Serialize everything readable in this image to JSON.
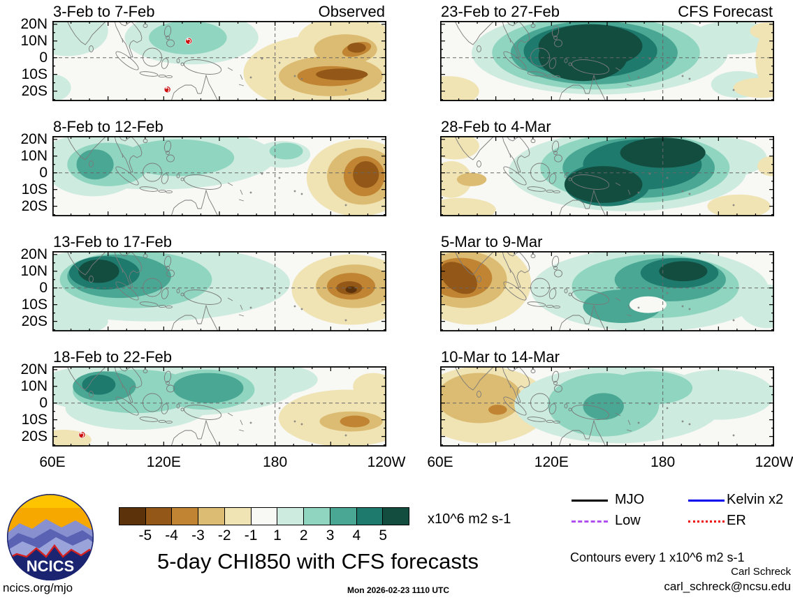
{
  "header": {
    "observed_label": "Observed",
    "forecast_label": "CFS Forecast"
  },
  "axes": {
    "x_ticks": [
      "60E",
      "120E",
      "180",
      "120W"
    ],
    "y_ticks": [
      "20N",
      "10N",
      "0",
      "10S",
      "20S"
    ]
  },
  "colorbar": {
    "values": [
      "-5",
      "-4",
      "-3",
      "-2",
      "-1",
      "1",
      "2",
      "3",
      "4",
      "5"
    ],
    "colors": [
      "#5b3209",
      "#935817",
      "#c08433",
      "#dcbc72",
      "#f0e3b4",
      "#f8f8f5",
      "#cdebdf",
      "#8fd5c0",
      "#4aa794",
      "#1e7a6d",
      "#124d40"
    ],
    "units": "x10^6 m2 s-1"
  },
  "legend": {
    "items": [
      {
        "label": "MJO",
        "color": "#000000",
        "style": "solid"
      },
      {
        "label": "Kelvin x2",
        "color": "#0000ee",
        "style": "solid"
      },
      {
        "label": "Low",
        "color": "#b050f0",
        "style": "dashed"
      },
      {
        "label": "ER",
        "color": "#ee0000",
        "style": "dotted"
      }
    ]
  },
  "footer": {
    "contours_note": "Contours every 1 x10^6 m2 s-1",
    "credit_name": "Carl Schreck",
    "credit_email": "carl_schreck@ncsu.edu",
    "title": "5-day CHI850 with CFS forecasts",
    "site": "ncics.org/mjo",
    "timestamp": "Mon 2026-02-23 1110 UTC",
    "logo_text": "NCICS"
  },
  "chart_data": {
    "type": "heatmap",
    "subtype": "filled-contour-longitude-latitude-maps",
    "variable": "CHI850 (850 hPa velocity potential anomaly)",
    "units": "x10^6 m2 s-1",
    "contour_interval": 1,
    "lon_range": [
      60,
      240
    ],
    "lat_range": [
      -26,
      22
    ],
    "x_tick_lons": [
      60,
      120,
      180,
      240
    ],
    "y_tick_lats": [
      20,
      10,
      0,
      -10,
      -20
    ],
    "gridlines": {
      "equator": 0,
      "dateline": 180
    },
    "panels": [
      {
        "id": "obs-1",
        "title": "3-Feb to 7-Feb",
        "corner_label": "Observed",
        "source": "Observed",
        "features": [
          {
            "lon": 68,
            "lat": 16,
            "rlon": 22,
            "rlat": 15,
            "value": 1
          },
          {
            "lon": 60,
            "lat": -18,
            "rlon": 10,
            "rlat": 8,
            "value": 1
          },
          {
            "lon": 135,
            "lat": 12,
            "rlon": 36,
            "rlat": 16,
            "value": 1
          },
          {
            "lon": 133,
            "lat": 12,
            "rlon": 21,
            "rlat": 10,
            "value": 2
          },
          {
            "lon": 208,
            "lat": -9,
            "rlon": 45,
            "rlat": 23,
            "value": -1
          },
          {
            "lon": 218,
            "lat": 10,
            "rlon": 26,
            "rlat": 15,
            "value": -1
          },
          {
            "lon": 218,
            "lat": 5,
            "rlon": 17,
            "rlat": 9,
            "value": -2
          },
          {
            "lon": 210,
            "lat": -11,
            "rlon": 28,
            "rlat": 12,
            "value": -2
          },
          {
            "lon": 224,
            "lat": 5,
            "rlon": 8,
            "rlat": 4,
            "rot": -15,
            "value": -3
          },
          {
            "lon": 210,
            "lat": -11,
            "rlon": 18,
            "rlat": 6,
            "value": -3
          },
          {
            "lon": 224,
            "lat": 6,
            "rlon": 5,
            "rlat": 3,
            "value": -4
          },
          {
            "lon": 216,
            "lat": -10,
            "rlon": 14,
            "rlat": 3.5,
            "value": -4
          }
        ],
        "storms": [
          {
            "lon": 133.5,
            "lat": 10
          },
          {
            "lon": 122,
            "lat": -19
          }
        ]
      },
      {
        "id": "obs-2",
        "title": "8-Feb to 12-Feb",
        "source": "Observed",
        "features": [
          {
            "lon": 116,
            "lat": 9,
            "rlon": 64,
            "rlat": 19,
            "value": 1
          },
          {
            "lon": 82,
            "lat": 3,
            "rlon": 26,
            "rlat": 17,
            "value": 1
          },
          {
            "lon": 184,
            "lat": 11,
            "rlon": 15,
            "rlat": 8,
            "value": 1
          },
          {
            "lon": 90,
            "lat": 5,
            "rlon": 22,
            "rlat": 13,
            "value": 2
          },
          {
            "lon": 128,
            "lat": 9,
            "rlon": 30,
            "rlat": 11,
            "value": 2
          },
          {
            "lon": 186,
            "lat": 13,
            "rlon": 9,
            "rlat": 5,
            "value": 2
          },
          {
            "lon": 83,
            "lat": 5,
            "rlon": 10,
            "rlat": 9,
            "value": 3
          },
          {
            "lon": 225,
            "lat": -3,
            "rlon": 28,
            "rlat": 23,
            "value": -1
          },
          {
            "lon": 227,
            "lat": -2,
            "rlon": 19,
            "rlat": 17,
            "value": -2
          },
          {
            "lon": 228,
            "lat": -2,
            "rlon": 11,
            "rlat": 12,
            "value": -3
          },
          {
            "lon": 229,
            "lat": -1,
            "rlon": 7,
            "rlat": 8,
            "value": -4
          }
        ],
        "storms": []
      },
      {
        "id": "obs-3",
        "title": "13-Feb to 17-Feb",
        "source": "Observed",
        "features": [
          {
            "lon": 113,
            "lat": 3,
            "rlon": 75,
            "rlat": 23,
            "value": 1
          },
          {
            "lon": 71,
            "lat": -20,
            "rlon": 19,
            "rlat": 8,
            "value": 1
          },
          {
            "lon": 105,
            "lat": 5,
            "rlon": 41,
            "rlat": 17,
            "value": 2
          },
          {
            "lon": 96,
            "lat": 7,
            "rlon": 28,
            "rlat": 13,
            "value": 3
          },
          {
            "lon": 88,
            "lat": 9,
            "rlon": 19,
            "rlat": 10,
            "value": 4
          },
          {
            "lon": 85,
            "lat": 10,
            "rlon": 11,
            "rlat": 7,
            "value": 5
          },
          {
            "lon": 221,
            "lat": -1,
            "rlon": 32,
            "rlat": 21,
            "value": -1
          },
          {
            "lon": 223,
            "lat": 1,
            "rlon": 21,
            "rlat": 13,
            "value": -2
          },
          {
            "lon": 221,
            "lat": 1,
            "rlon": 13,
            "rlat": 8,
            "value": -3
          },
          {
            "lon": 220,
            "lat": 0,
            "rlon": 7,
            "rlat": 4,
            "value": -4
          },
          {
            "lon": 221,
            "lat": -1,
            "rlon": 3,
            "rlat": 2,
            "value": -5
          }
        ],
        "storms": []
      },
      {
        "id": "obs-4",
        "title": "18-Feb to 22-Feb",
        "source": "Observed",
        "features": [
          {
            "lon": 120,
            "lat": 9,
            "rlon": 71,
            "rlat": 17,
            "value": 1
          },
          {
            "lon": 105,
            "lat": -3,
            "rlon": 38,
            "rlat": 13,
            "value": 1
          },
          {
            "lon": 173,
            "lat": 14,
            "rlon": 30,
            "rlat": 10,
            "value": 1
          },
          {
            "lon": 105,
            "lat": 7,
            "rlon": 34,
            "rlat": 13,
            "value": 2
          },
          {
            "lon": 143,
            "lat": 8,
            "rlon": 26,
            "rlat": 12,
            "value": 2
          },
          {
            "lon": 88,
            "lat": 10,
            "rlon": 17,
            "rlat": 9,
            "value": 3
          },
          {
            "lon": 144,
            "lat": 9,
            "rlon": 19,
            "rlat": 9,
            "value": 3
          },
          {
            "lon": 85,
            "lat": 11,
            "rlon": 9,
            "rlat": 6,
            "value": 4
          },
          {
            "lon": 66,
            "lat": -22,
            "rlon": 15,
            "rlat": 6,
            "value": -1
          },
          {
            "lon": 218,
            "lat": -9,
            "rlon": 36,
            "rlat": 17,
            "value": -1
          },
          {
            "lon": 233,
            "lat": 10,
            "rlon": 11,
            "rlat": 8,
            "value": -1
          },
          {
            "lon": 221,
            "lat": -11,
            "rlon": 17,
            "rlat": 6,
            "value": -2
          },
          {
            "lon": 223,
            "lat": -11,
            "rlon": 8,
            "rlat": 3.5,
            "value": -3
          }
        ],
        "storms": [
          {
            "lon": 76,
            "lat": -19
          }
        ]
      },
      {
        "id": "fcst-1",
        "title": "23-Feb to 27-Feb",
        "corner_label": "CFS Forecast",
        "source": "CFS Forecast",
        "features": [
          {
            "lon": 146,
            "lat": 3,
            "rlon": 69,
            "rlat": 25,
            "value": 1
          },
          {
            "lon": 218,
            "lat": 12,
            "rlon": 23,
            "rlat": 10,
            "value": 1
          },
          {
            "lon": 221,
            "lat": -16,
            "rlon": 15,
            "rlat": 8,
            "value": 1
          },
          {
            "lon": 144,
            "lat": 3,
            "rlon": 56,
            "rlat": 22,
            "value": 2
          },
          {
            "lon": 143,
            "lat": 3,
            "rlon": 45,
            "rlat": 19,
            "value": 3
          },
          {
            "lon": 141,
            "lat": 4,
            "rlon": 36,
            "rlat": 16,
            "value": 4
          },
          {
            "lon": 141,
            "lat": 7,
            "rlon": 28,
            "rlat": 13,
            "value": 5
          },
          {
            "lon": 137,
            "lat": 1,
            "rlon": 24,
            "rlat": 15,
            "value": 5
          },
          {
            "lon": 64,
            "lat": -20,
            "rlon": 17,
            "rlat": 9,
            "value": -1
          },
          {
            "lon": 239,
            "lat": -1,
            "rlon": 9,
            "rlat": 19,
            "value": -1
          },
          {
            "lon": 233,
            "lat": -18,
            "rlon": 15,
            "rlat": 6,
            "value": -1
          },
          {
            "lon": 236,
            "lat": 16,
            "rlon": 9,
            "rlat": 5,
            "value": -1
          }
        ],
        "storms": []
      },
      {
        "id": "fcst-2",
        "title": "28-Feb to 4-Mar",
        "source": "CFS Forecast",
        "features": [
          {
            "lon": 161,
            "lat": 1,
            "rlon": 64,
            "rlat": 24,
            "value": 1
          },
          {
            "lon": 206,
            "lat": 9,
            "rlon": 30,
            "rlat": 13,
            "value": 1
          },
          {
            "lon": 165,
            "lat": 3,
            "rlon": 51,
            "rlat": 21,
            "value": 2
          },
          {
            "lon": 167,
            "lat": 3,
            "rlon": 41,
            "rlat": 18,
            "value": 3
          },
          {
            "lon": 169,
            "lat": 5,
            "rlon": 32,
            "rlat": 15,
            "value": 4
          },
          {
            "lon": 150,
            "lat": -7,
            "rlon": 23,
            "rlat": 13,
            "value": 4
          },
          {
            "lon": 180,
            "lat": 12,
            "rlon": 23,
            "rlat": 9,
            "value": 5
          },
          {
            "lon": 148,
            "lat": -7,
            "rlon": 21,
            "rlat": 11,
            "value": 5
          },
          {
            "lon": 68,
            "lat": 16,
            "rlon": 13,
            "rlat": 8,
            "value": -1
          },
          {
            "lon": 66,
            "lat": -4,
            "rlon": 11,
            "rlat": 11,
            "value": -1
          },
          {
            "lon": 71,
            "lat": -22,
            "rlon": 19,
            "rlat": 7,
            "value": -1
          },
          {
            "lon": 221,
            "lat": -20,
            "rlon": 17,
            "rlat": 7,
            "value": -1
          },
          {
            "lon": 239,
            "lat": 4,
            "rlon": 8,
            "rlat": 6,
            "value": -1
          },
          {
            "lon": 77,
            "lat": -4,
            "rlon": 8,
            "rlat": 4,
            "value": -2
          }
        ],
        "storms": []
      },
      {
        "id": "fcst-3",
        "title": "5-Mar to 9-Mar",
        "source": "CFS Forecast",
        "features": [
          {
            "lon": 77,
            "lat": 3,
            "rlon": 32,
            "rlat": 25,
            "value": -1
          },
          {
            "lon": 73,
            "lat": 5,
            "rlon": 23,
            "rlat": 17,
            "value": -2
          },
          {
            "lon": 71,
            "lat": 6,
            "rlon": 17,
            "rlat": 12,
            "value": -3
          },
          {
            "lon": 70,
            "lat": 6,
            "rlon": 11,
            "rlat": 8,
            "rot": 35,
            "value": -4
          },
          {
            "lon": 173,
            "lat": -1,
            "rlon": 64,
            "rlat": 25,
            "value": 1
          },
          {
            "lon": 236,
            "lat": -11,
            "rlon": 15,
            "rlat": 13,
            "value": 1
          },
          {
            "lon": 176,
            "lat": 1,
            "rlon": 45,
            "rlat": 19,
            "value": 2
          },
          {
            "lon": 184,
            "lat": 5,
            "rlon": 30,
            "rlat": 13,
            "value": 3
          },
          {
            "lon": 158,
            "lat": -11,
            "rlon": 21,
            "rlat": 10,
            "value": 3
          },
          {
            "lon": 189,
            "lat": 9,
            "rlon": 21,
            "rlat": 9,
            "value": 4
          },
          {
            "lon": 191,
            "lat": 10,
            "rlon": 13,
            "rlat": 6,
            "value": 5
          },
          {
            "lon": 172,
            "lat": -10,
            "rlon": 10,
            "rlat": 5,
            "value": 0
          }
        ],
        "storms": []
      },
      {
        "id": "fcst-4",
        "title": "10-Mar to 14-Mar",
        "source": "CFS Forecast",
        "features": [
          {
            "lon": 83,
            "lat": -1,
            "rlon": 36,
            "rlat": 23,
            "value": -1
          },
          {
            "lon": 81,
            "lat": 3,
            "rlon": 23,
            "rlat": 15,
            "value": -2
          },
          {
            "lon": 91,
            "lat": -4,
            "rlon": 5,
            "rlat": 3,
            "value": -3
          },
          {
            "lon": 156,
            "lat": -1,
            "rlon": 56,
            "rlat": 23,
            "value": 1
          },
          {
            "lon": 210,
            "lat": 5,
            "rlon": 30,
            "rlat": 15,
            "value": 1
          },
          {
            "lon": 148,
            "lat": -1,
            "rlon": 30,
            "rlat": 19,
            "value": 2
          },
          {
            "lon": 173,
            "lat": 9,
            "rlon": 23,
            "rlat": 10,
            "value": 2
          },
          {
            "lon": 148,
            "lat": -2,
            "rlon": 11,
            "rlat": 8,
            "value": 3
          }
        ],
        "storms": []
      }
    ]
  }
}
